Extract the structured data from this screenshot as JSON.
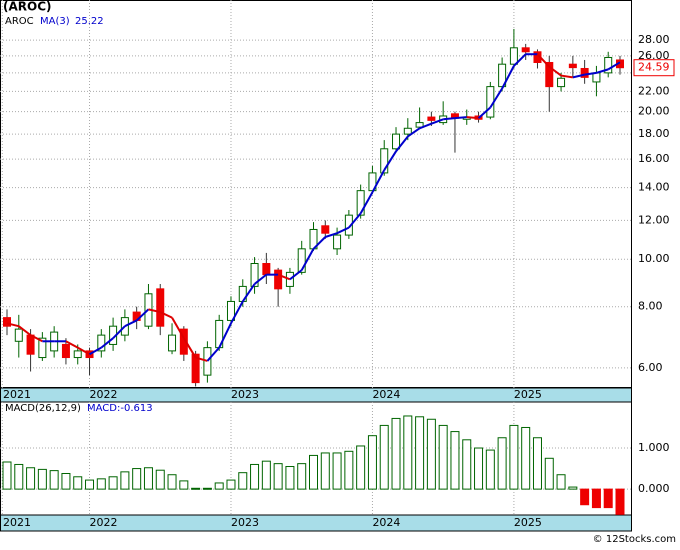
{
  "chart_data": {
    "type": "candlestick",
    "title": "(AROC)",
    "legend_name": "AROC",
    "ma_label": "MA(3)",
    "ma_value_label": "25.22",
    "categories": [
      null,
      null,
      null,
      null,
      null,
      null,
      null,
      null,
      null,
      null,
      null,
      null,
      null,
      null,
      null,
      null,
      null,
      null,
      null,
      null,
      null,
      null,
      null,
      null,
      null,
      null,
      null,
      null,
      null,
      null,
      null,
      null,
      null,
      null,
      null,
      null,
      null,
      null,
      null,
      null,
      null,
      null,
      null,
      null,
      null,
      null,
      null,
      null,
      null,
      null,
      null,
      null,
      null
    ],
    "open": [
      7.6,
      6.8,
      7.0,
      6.3,
      6.5,
      6.7,
      6.3,
      6.5,
      6.5,
      6.7,
      7.0,
      7.8,
      7.3,
      8.7,
      6.5,
      7.2,
      6.4,
      5.8,
      6.6,
      7.5,
      8.2,
      8.8,
      9.8,
      9.5,
      8.8,
      9.4,
      10.5,
      11.7,
      10.5,
      11.2,
      12.3,
      13.8,
      15.0,
      16.8,
      18.0,
      18.6,
      19.5,
      19.0,
      19.8,
      19.3,
      19.6,
      19.5,
      22.5,
      25.0,
      27.0,
      26.5,
      25.2,
      22.5,
      25.0,
      24.5,
      23.0,
      24.0,
      25.5
    ],
    "high": [
      7.9,
      7.7,
      7.2,
      7.1,
      7.3,
      6.9,
      6.7,
      6.6,
      7.2,
      7.6,
      7.9,
      8.0,
      8.9,
      8.9,
      7.4,
      7.3,
      6.5,
      6.8,
      7.7,
      8.4,
      9.1,
      10.1,
      10.3,
      9.6,
      9.6,
      10.9,
      11.9,
      12.0,
      11.6,
      12.6,
      14.2,
      15.5,
      17.5,
      18.6,
      19.4,
      20.4,
      20.0,
      21.0,
      20.0,
      20.2,
      20.0,
      23.0,
      25.8,
      29.5,
      27.5,
      26.8,
      26.0,
      24.0,
      26.0,
      25.5,
      24.8,
      26.5,
      26.0
    ],
    "low": [
      7.0,
      6.3,
      5.9,
      6.2,
      6.3,
      6.1,
      6.1,
      5.8,
      6.3,
      6.5,
      6.8,
      7.2,
      7.2,
      7.0,
      6.4,
      6.2,
      5.5,
      5.6,
      6.5,
      7.3,
      8.0,
      8.5,
      8.9,
      8.0,
      8.5,
      9.3,
      10.4,
      11.0,
      10.2,
      11.0,
      12.1,
      13.6,
      14.8,
      16.5,
      17.5,
      18.5,
      18.7,
      18.8,
      16.5,
      18.8,
      19.0,
      19.3,
      22.0,
      24.5,
      25.5,
      24.5,
      20.0,
      22.0,
      23.5,
      22.8,
      21.5,
      23.5,
      23.8
    ],
    "close": [
      7.3,
      7.2,
      6.4,
      6.9,
      7.1,
      6.3,
      6.5,
      6.3,
      7.0,
      7.3,
      7.6,
      7.5,
      8.5,
      7.3,
      7.0,
      6.4,
      5.6,
      6.6,
      7.5,
      8.2,
      8.8,
      9.8,
      9.3,
      8.7,
      9.4,
      10.5,
      11.5,
      11.3,
      11.2,
      12.3,
      13.8,
      15.0,
      16.8,
      18.0,
      18.5,
      19.0,
      19.2,
      19.6,
      19.4,
      19.5,
      19.3,
      22.5,
      25.0,
      27.0,
      26.5,
      25.2,
      22.5,
      23.4,
      24.6,
      23.5,
      24.0,
      25.8,
      24.59
    ],
    "ma": [
      7.4,
      7.3,
      7.0,
      6.8,
      6.8,
      6.8,
      6.6,
      6.4,
      6.6,
      6.9,
      7.3,
      7.5,
      7.9,
      7.8,
      7.6,
      6.9,
      6.3,
      6.2,
      6.6,
      7.4,
      8.2,
      8.9,
      9.3,
      9.3,
      9.1,
      9.5,
      10.5,
      11.1,
      11.3,
      11.6,
      12.4,
      13.7,
      15.2,
      16.6,
      17.8,
      18.5,
      18.9,
      19.3,
      19.4,
      19.5,
      19.4,
      20.4,
      22.3,
      24.8,
      26.2,
      26.2,
      24.7,
      23.7,
      23.5,
      23.8,
      24.0,
      24.4,
      25.22
    ],
    "up_color": "#006400",
    "down_color": "#ee0000",
    "ma_up_color": "#0000cc",
    "ma_down_color": "#dd0000",
    "log_scale": true,
    "grid": true,
    "ylim": [
      5.46,
      33.8
    ],
    "yticks": [
      {
        "value": 6,
        "label": "6.00"
      },
      {
        "value": 8,
        "label": "8.00"
      },
      {
        "value": 10,
        "label": "10.00"
      },
      {
        "value": 12,
        "label": "12.00"
      },
      {
        "value": 14,
        "label": "14.00"
      },
      {
        "value": 16,
        "label": "16.00"
      },
      {
        "value": 18,
        "label": "18.00"
      },
      {
        "value": 20,
        "label": "20.00"
      },
      {
        "value": 22,
        "label": "22.00"
      },
      {
        "value": 24,
        "label": "24.00"
      },
      {
        "value": 26,
        "label": "26.00"
      },
      {
        "value": 28,
        "label": "28.00"
      }
    ],
    "xticks": [
      {
        "value": -0.4,
        "label": "2021"
      },
      {
        "value": 7,
        "label": "2022"
      },
      {
        "value": 19,
        "label": "2023"
      },
      {
        "value": 31,
        "label": "2024"
      },
      {
        "value": 43,
        "label": "2025"
      }
    ],
    "macd": {
      "label": "MACD(26,12,9)",
      "value_label": "MACD:-0.613",
      "color": "#006400",
      "values": [
        0.66,
        0.6,
        0.52,
        0.48,
        0.45,
        0.38,
        0.3,
        0.22,
        0.25,
        0.3,
        0.42,
        0.5,
        0.52,
        0.46,
        0.35,
        0.2,
        0.02,
        0.02,
        0.15,
        0.22,
        0.4,
        0.6,
        0.68,
        0.62,
        0.55,
        0.62,
        0.82,
        0.88,
        0.88,
        0.92,
        1.05,
        1.3,
        1.55,
        1.72,
        1.78,
        1.76,
        1.7,
        1.55,
        1.4,
        1.2,
        1.0,
        0.95,
        1.25,
        1.55,
        1.5,
        1.25,
        0.75,
        0.35,
        0.05,
        -0.38,
        -0.45,
        -0.45,
        -0.613
      ],
      "down_color": "#ee0000",
      "ylim": [
        -0.63,
        2.12
      ],
      "yticks": [
        {
          "value": 0,
          "label": "0.000"
        },
        {
          "value": 1,
          "label": "1.000"
        }
      ]
    },
    "footer": "© 12Stocks.com"
  }
}
